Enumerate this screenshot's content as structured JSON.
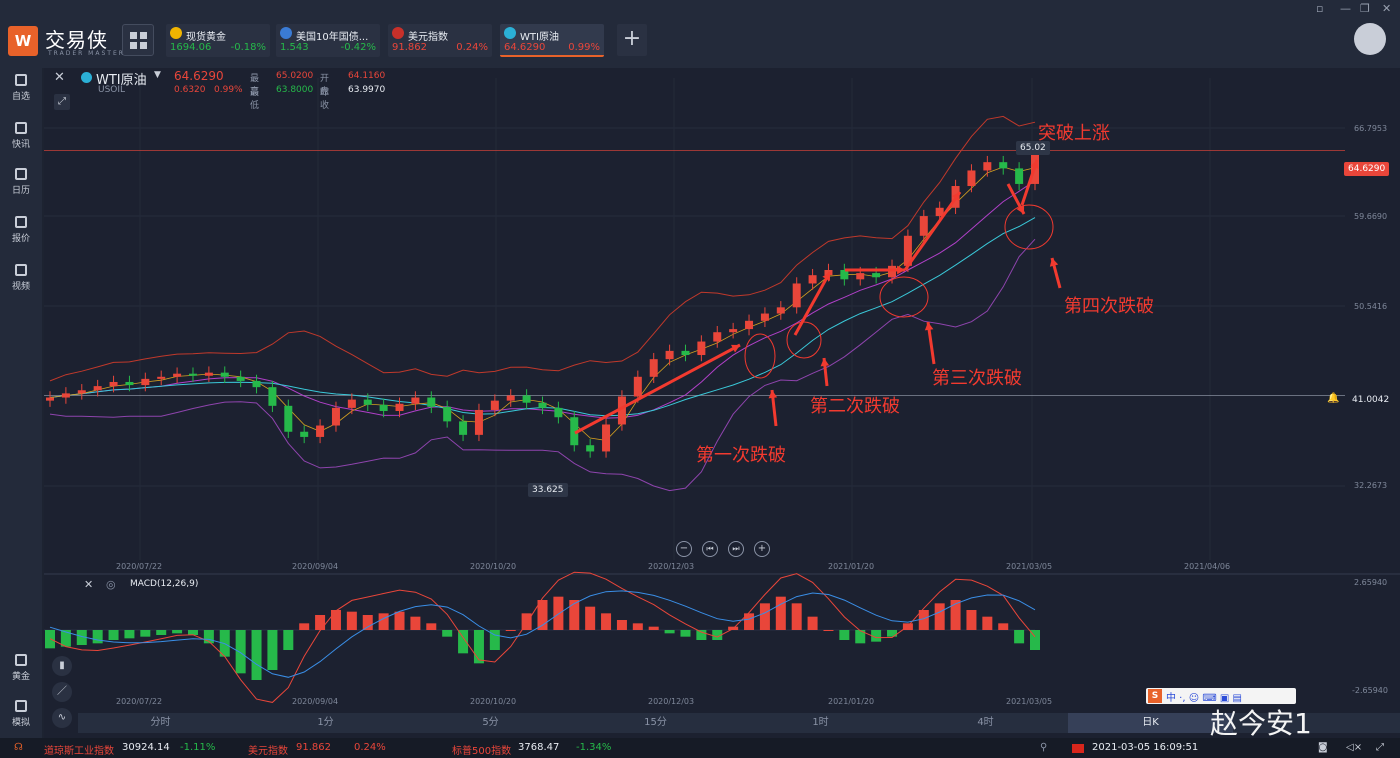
{
  "app": {
    "brand": "交易侠",
    "brand_sub": "TRADER MASTER",
    "logo_text": "W"
  },
  "tabs": [
    {
      "name": "现货黄金",
      "price": "1694.06",
      "change": "-0.18%",
      "icon_color": "#f0b400",
      "price_color": "#26b94a",
      "change_color": "#26b94a"
    },
    {
      "name": "美国10年国债...",
      "price": "1.543",
      "change": "-0.42%",
      "icon_color": "#3a7bd5",
      "price_color": "#26b94a",
      "change_color": "#26b94a"
    },
    {
      "name": "美元指数",
      "price": "91.862",
      "change": "0.24%",
      "icon_color": "#c8302a",
      "price_color": "#e9463a",
      "change_color": "#e9463a"
    },
    {
      "name": "WTI原油",
      "price": "64.6290",
      "change": "0.99%",
      "icon_color": "#2bb0d6",
      "price_color": "#e9463a",
      "change_color": "#e9463a"
    }
  ],
  "sidebar": [
    {
      "label": "自选"
    },
    {
      "label": "快讯"
    },
    {
      "label": "日历"
    },
    {
      "label": "报价"
    },
    {
      "label": "视频"
    },
    {
      "label": "黄金"
    },
    {
      "label": "模拟"
    }
  ],
  "header": {
    "symbol": "WTI原油",
    "code": "USOIL",
    "price": "64.6290",
    "change": "0.6320",
    "change_pct": "0.99%",
    "high_label": "最高",
    "high": "65.0200",
    "open_label": "开盘",
    "open": "64.1160",
    "low_label": "最低",
    "low": "63.8000",
    "prev_label": "昨收",
    "prev": "63.9970"
  },
  "price_axis": [
    "66.7953",
    "59.6690",
    "50.5416",
    "32.2673"
  ],
  "price_tags": {
    "current": "64.6290",
    "line": "41.0042",
    "peak": "65.02",
    "trough": "33.625"
  },
  "date_axis": [
    "2020/07/22",
    "2020/09/04",
    "2020/10/20",
    "2020/12/03",
    "2021/01/20",
    "2021/03/05",
    "2021/04/06"
  ],
  "macd": {
    "label": "MACD(12,26,9)",
    "top": "2.65940",
    "bottom": "-2.65940"
  },
  "annotations": [
    "突破上涨",
    "第四次跌破",
    "第三次跌破",
    "第二次跌破",
    "第一次跌破"
  ],
  "timeframes": [
    "分时",
    "1分",
    "5分",
    "15分",
    "1时",
    "4时",
    "日K"
  ],
  "watermark": "赵今安1",
  "status": {
    "dow_label": "道琼斯工业指数",
    "dow": "30924.14",
    "dow_chg": "-1.11%",
    "usd_label": "美元指数",
    "usd": "91.862",
    "usd_chg": "0.24%",
    "sp_label": "标普500指数",
    "sp": "3768.47",
    "sp_chg": "-1.34%",
    "datetime": "2021-03-05 16:09:51"
  },
  "chart_data": {
    "type": "candlestick",
    "x_range": [
      "2020/07/22",
      "2021/03/05"
    ],
    "ylim": [
      32.2673,
      66.7953
    ],
    "close": [
      40.8,
      41.2,
      41.5,
      41.9,
      42.3,
      42.0,
      42.6,
      42.8,
      43.1,
      42.9,
      43.2,
      42.8,
      42.4,
      41.8,
      40.0,
      37.5,
      37.0,
      38.1,
      39.8,
      40.6,
      40.1,
      39.5,
      40.2,
      40.8,
      39.9,
      38.5,
      37.2,
      39.6,
      40.5,
      41.0,
      40.3,
      39.8,
      38.9,
      36.2,
      35.6,
      38.2,
      40.9,
      42.8,
      44.5,
      45.3,
      44.9,
      46.2,
      47.1,
      47.4,
      48.2,
      48.9,
      49.5,
      51.8,
      52.6,
      53.1,
      52.2,
      52.8,
      52.4,
      53.5,
      56.4,
      58.3,
      59.1,
      61.2,
      62.7,
      63.5,
      62.9,
      61.4,
      64.6
    ],
    "macd_hist": [
      -0.55,
      -0.5,
      -0.45,
      -0.4,
      -0.3,
      -0.25,
      -0.2,
      -0.15,
      -0.1,
      -0.15,
      -0.4,
      -0.8,
      -1.3,
      -1.5,
      -1.2,
      -0.6,
      0.2,
      0.45,
      0.6,
      0.55,
      0.45,
      0.5,
      0.55,
      0.4,
      0.2,
      -0.2,
      -0.7,
      -1.0,
      -0.6,
      0.0,
      0.5,
      0.9,
      1.0,
      0.9,
      0.7,
      0.5,
      0.3,
      0.2,
      0.1,
      -0.1,
      -0.2,
      -0.3,
      -0.3,
      0.1,
      0.5,
      0.8,
      1.0,
      0.8,
      0.4,
      0.0,
      -0.3,
      -0.4,
      -0.35,
      -0.2,
      0.2,
      0.6,
      0.8,
      0.9,
      0.6,
      0.4,
      0.2,
      -0.4,
      -0.6
    ],
    "macd_hist_range": [
      -1.8,
      1.2
    ]
  }
}
